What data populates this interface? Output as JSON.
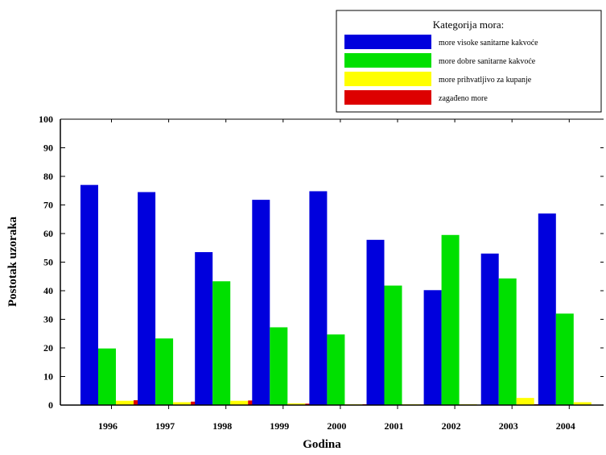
{
  "chart_data": {
    "type": "bar",
    "xlabel": "Godina",
    "ylabel": "Postotak uzoraka",
    "ylim": [
      0,
      100
    ],
    "yticks": [
      0,
      10,
      20,
      30,
      40,
      50,
      60,
      70,
      80,
      90,
      100
    ],
    "categories": [
      "1996",
      "1997",
      "1998",
      "1999",
      "2000",
      "2001",
      "2002",
      "2003",
      "2004"
    ],
    "legend_title": "Kategorija mora:",
    "legend_position": "top-right",
    "grid": false,
    "series": [
      {
        "name": "more visoke sanitarne kakvoće",
        "color": "#0000dd",
        "values": [
          77,
          74.5,
          53.5,
          71.8,
          74.8,
          57.8,
          40.2,
          53,
          67
        ]
      },
      {
        "name": "more dobre sanitarne kakvoće",
        "color": "#00e000",
        "values": [
          19.8,
          23.3,
          43.3,
          27.2,
          24.7,
          41.8,
          59.5,
          44.3,
          32
        ]
      },
      {
        "name": "more prihvatljivo za kupanje",
        "color": "#ffff00",
        "values": [
          1.5,
          1,
          1.5,
          0.6,
          0.3,
          0.3,
          0.3,
          2.5,
          1
        ]
      },
      {
        "name": "zagađeno more",
        "color": "#dd0000",
        "values": [
          1.7,
          1.2,
          1.6,
          0.5,
          0.3,
          0.2,
          0,
          0.3,
          0
        ]
      }
    ]
  }
}
